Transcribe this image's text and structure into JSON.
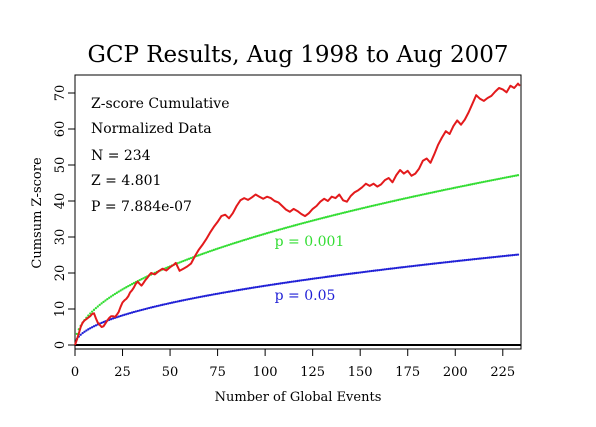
{
  "chart_data": {
    "type": "line",
    "title": "GCP Results, Aug 1998 to Aug 2007",
    "xlabel": "Number of Global Events",
    "ylabel": "Cumsum Z-score",
    "xlim": [
      0,
      234
    ],
    "ylim": [
      -2,
      76
    ],
    "x_ticks": [
      0,
      25,
      50,
      75,
      100,
      125,
      150,
      175,
      200,
      225
    ],
    "y_ticks": [
      0,
      10,
      20,
      30,
      40,
      50,
      60,
      70
    ],
    "stats_box": {
      "line1": "Z-score Cumulative",
      "line2": "Normalized Data",
      "line3": "N = 234",
      "line4": "Z = 4.801",
      "line5": "P = 7.884e-07"
    },
    "colors": {
      "cumulative": "#e31a1c",
      "p001": "#33dd33",
      "p05": "#1f1fd6",
      "baseline": "#000000"
    },
    "series": [
      {
        "name": "",
        "style": "solid",
        "points": [
          [
            0,
            0
          ],
          [
            1,
            1.5
          ],
          [
            2,
            3.2
          ],
          [
            3,
            5.0
          ],
          [
            4,
            6.2
          ],
          [
            5,
            6.8
          ],
          [
            6,
            7.2
          ],
          [
            7,
            7.6
          ],
          [
            8,
            8.0
          ],
          [
            9,
            8.6
          ],
          [
            10,
            8.8
          ],
          [
            11,
            7.4
          ],
          [
            12,
            6.2
          ],
          [
            13,
            5.6
          ],
          [
            14,
            5.0
          ],
          [
            15,
            5.2
          ],
          [
            16,
            6.0
          ],
          [
            17,
            6.8
          ],
          [
            18,
            7.5
          ],
          [
            19,
            8.0
          ],
          [
            20,
            8.0
          ],
          [
            21,
            7.8
          ],
          [
            22,
            8.4
          ],
          [
            23,
            9.2
          ],
          [
            24,
            10.6
          ],
          [
            25,
            11.8
          ],
          [
            26,
            12.4
          ],
          [
            27,
            12.8
          ],
          [
            28,
            13.5
          ],
          [
            29,
            14.6
          ],
          [
            30,
            15.2
          ],
          [
            31,
            16.0
          ],
          [
            32,
            17.0
          ],
          [
            33,
            17.6
          ],
          [
            34,
            17.0
          ],
          [
            35,
            16.5
          ],
          [
            36,
            17.2
          ],
          [
            37,
            18.0
          ],
          [
            38,
            18.6
          ],
          [
            39,
            19.4
          ],
          [
            40,
            20.0
          ],
          [
            42,
            19.6
          ],
          [
            44,
            20.5
          ],
          [
            46,
            21.2
          ],
          [
            48,
            20.7
          ],
          [
            50,
            21.6
          ],
          [
            52,
            22.3
          ],
          [
            53,
            22.8
          ],
          [
            55,
            20.6
          ],
          [
            57,
            21.2
          ],
          [
            59,
            21.8
          ],
          [
            61,
            22.6
          ],
          [
            63,
            24.6
          ],
          [
            65,
            26.4
          ],
          [
            67,
            27.8
          ],
          [
            69,
            29.4
          ],
          [
            71,
            31.2
          ],
          [
            73,
            32.8
          ],
          [
            75,
            34.2
          ],
          [
            77,
            35.8
          ],
          [
            79,
            36.2
          ],
          [
            81,
            35.2
          ],
          [
            83,
            36.6
          ],
          [
            85,
            38.6
          ],
          [
            87,
            40.2
          ],
          [
            89,
            40.8
          ],
          [
            91,
            40.3
          ],
          [
            93,
            41.0
          ],
          [
            95,
            41.8
          ],
          [
            97,
            41.2
          ],
          [
            99,
            40.6
          ],
          [
            101,
            41.2
          ],
          [
            103,
            40.8
          ],
          [
            105,
            40.0
          ],
          [
            107,
            39.6
          ],
          [
            109,
            38.6
          ],
          [
            111,
            37.6
          ],
          [
            113,
            37.0
          ],
          [
            115,
            37.8
          ],
          [
            117,
            37.2
          ],
          [
            119,
            36.4
          ],
          [
            121,
            35.8
          ],
          [
            123,
            36.6
          ],
          [
            125,
            37.8
          ],
          [
            127,
            38.6
          ],
          [
            129,
            39.8
          ],
          [
            131,
            40.6
          ],
          [
            133,
            40.0
          ],
          [
            135,
            41.2
          ],
          [
            137,
            40.8
          ],
          [
            139,
            41.8
          ],
          [
            141,
            40.2
          ],
          [
            143,
            39.8
          ],
          [
            145,
            41.4
          ],
          [
            147,
            42.4
          ],
          [
            149,
            43.0
          ],
          [
            151,
            43.8
          ],
          [
            153,
            44.8
          ],
          [
            155,
            44.2
          ],
          [
            157,
            44.8
          ],
          [
            159,
            44.0
          ],
          [
            161,
            44.6
          ],
          [
            163,
            45.8
          ],
          [
            165,
            46.4
          ],
          [
            167,
            45.2
          ],
          [
            169,
            47.2
          ],
          [
            171,
            48.6
          ],
          [
            173,
            47.6
          ],
          [
            175,
            48.4
          ],
          [
            177,
            47.0
          ],
          [
            179,
            47.6
          ],
          [
            181,
            49.0
          ],
          [
            183,
            51.2
          ],
          [
            185,
            51.8
          ],
          [
            187,
            50.6
          ],
          [
            189,
            53.0
          ],
          [
            191,
            55.6
          ],
          [
            193,
            57.6
          ],
          [
            195,
            59.4
          ],
          [
            197,
            58.6
          ],
          [
            199,
            60.8
          ],
          [
            201,
            62.4
          ],
          [
            203,
            61.2
          ],
          [
            205,
            62.6
          ],
          [
            207,
            64.6
          ],
          [
            209,
            67.0
          ],
          [
            211,
            69.4
          ],
          [
            213,
            68.4
          ],
          [
            215,
            67.8
          ],
          [
            217,
            68.6
          ],
          [
            219,
            69.2
          ],
          [
            221,
            70.4
          ],
          [
            223,
            71.4
          ],
          [
            225,
            71.0
          ],
          [
            227,
            70.2
          ],
          [
            229,
            72.0
          ],
          [
            231,
            71.4
          ],
          [
            233,
            72.6
          ],
          [
            234,
            72.0
          ]
        ]
      },
      {
        "name": "p = 0.001",
        "style": "dotted",
        "formula": "3.09*sqrt(x)"
      },
      {
        "name": "p = 0.05",
        "style": "dotted",
        "formula": "1.645*sqrt(x)"
      }
    ],
    "annotations": [
      {
        "text": "p = 0.001",
        "x": 105,
        "y": 27.5,
        "color": "#33dd33"
      },
      {
        "text": "p = 0.05",
        "x": 105,
        "y": 12.5,
        "color": "#1f1fd6"
      }
    ]
  }
}
